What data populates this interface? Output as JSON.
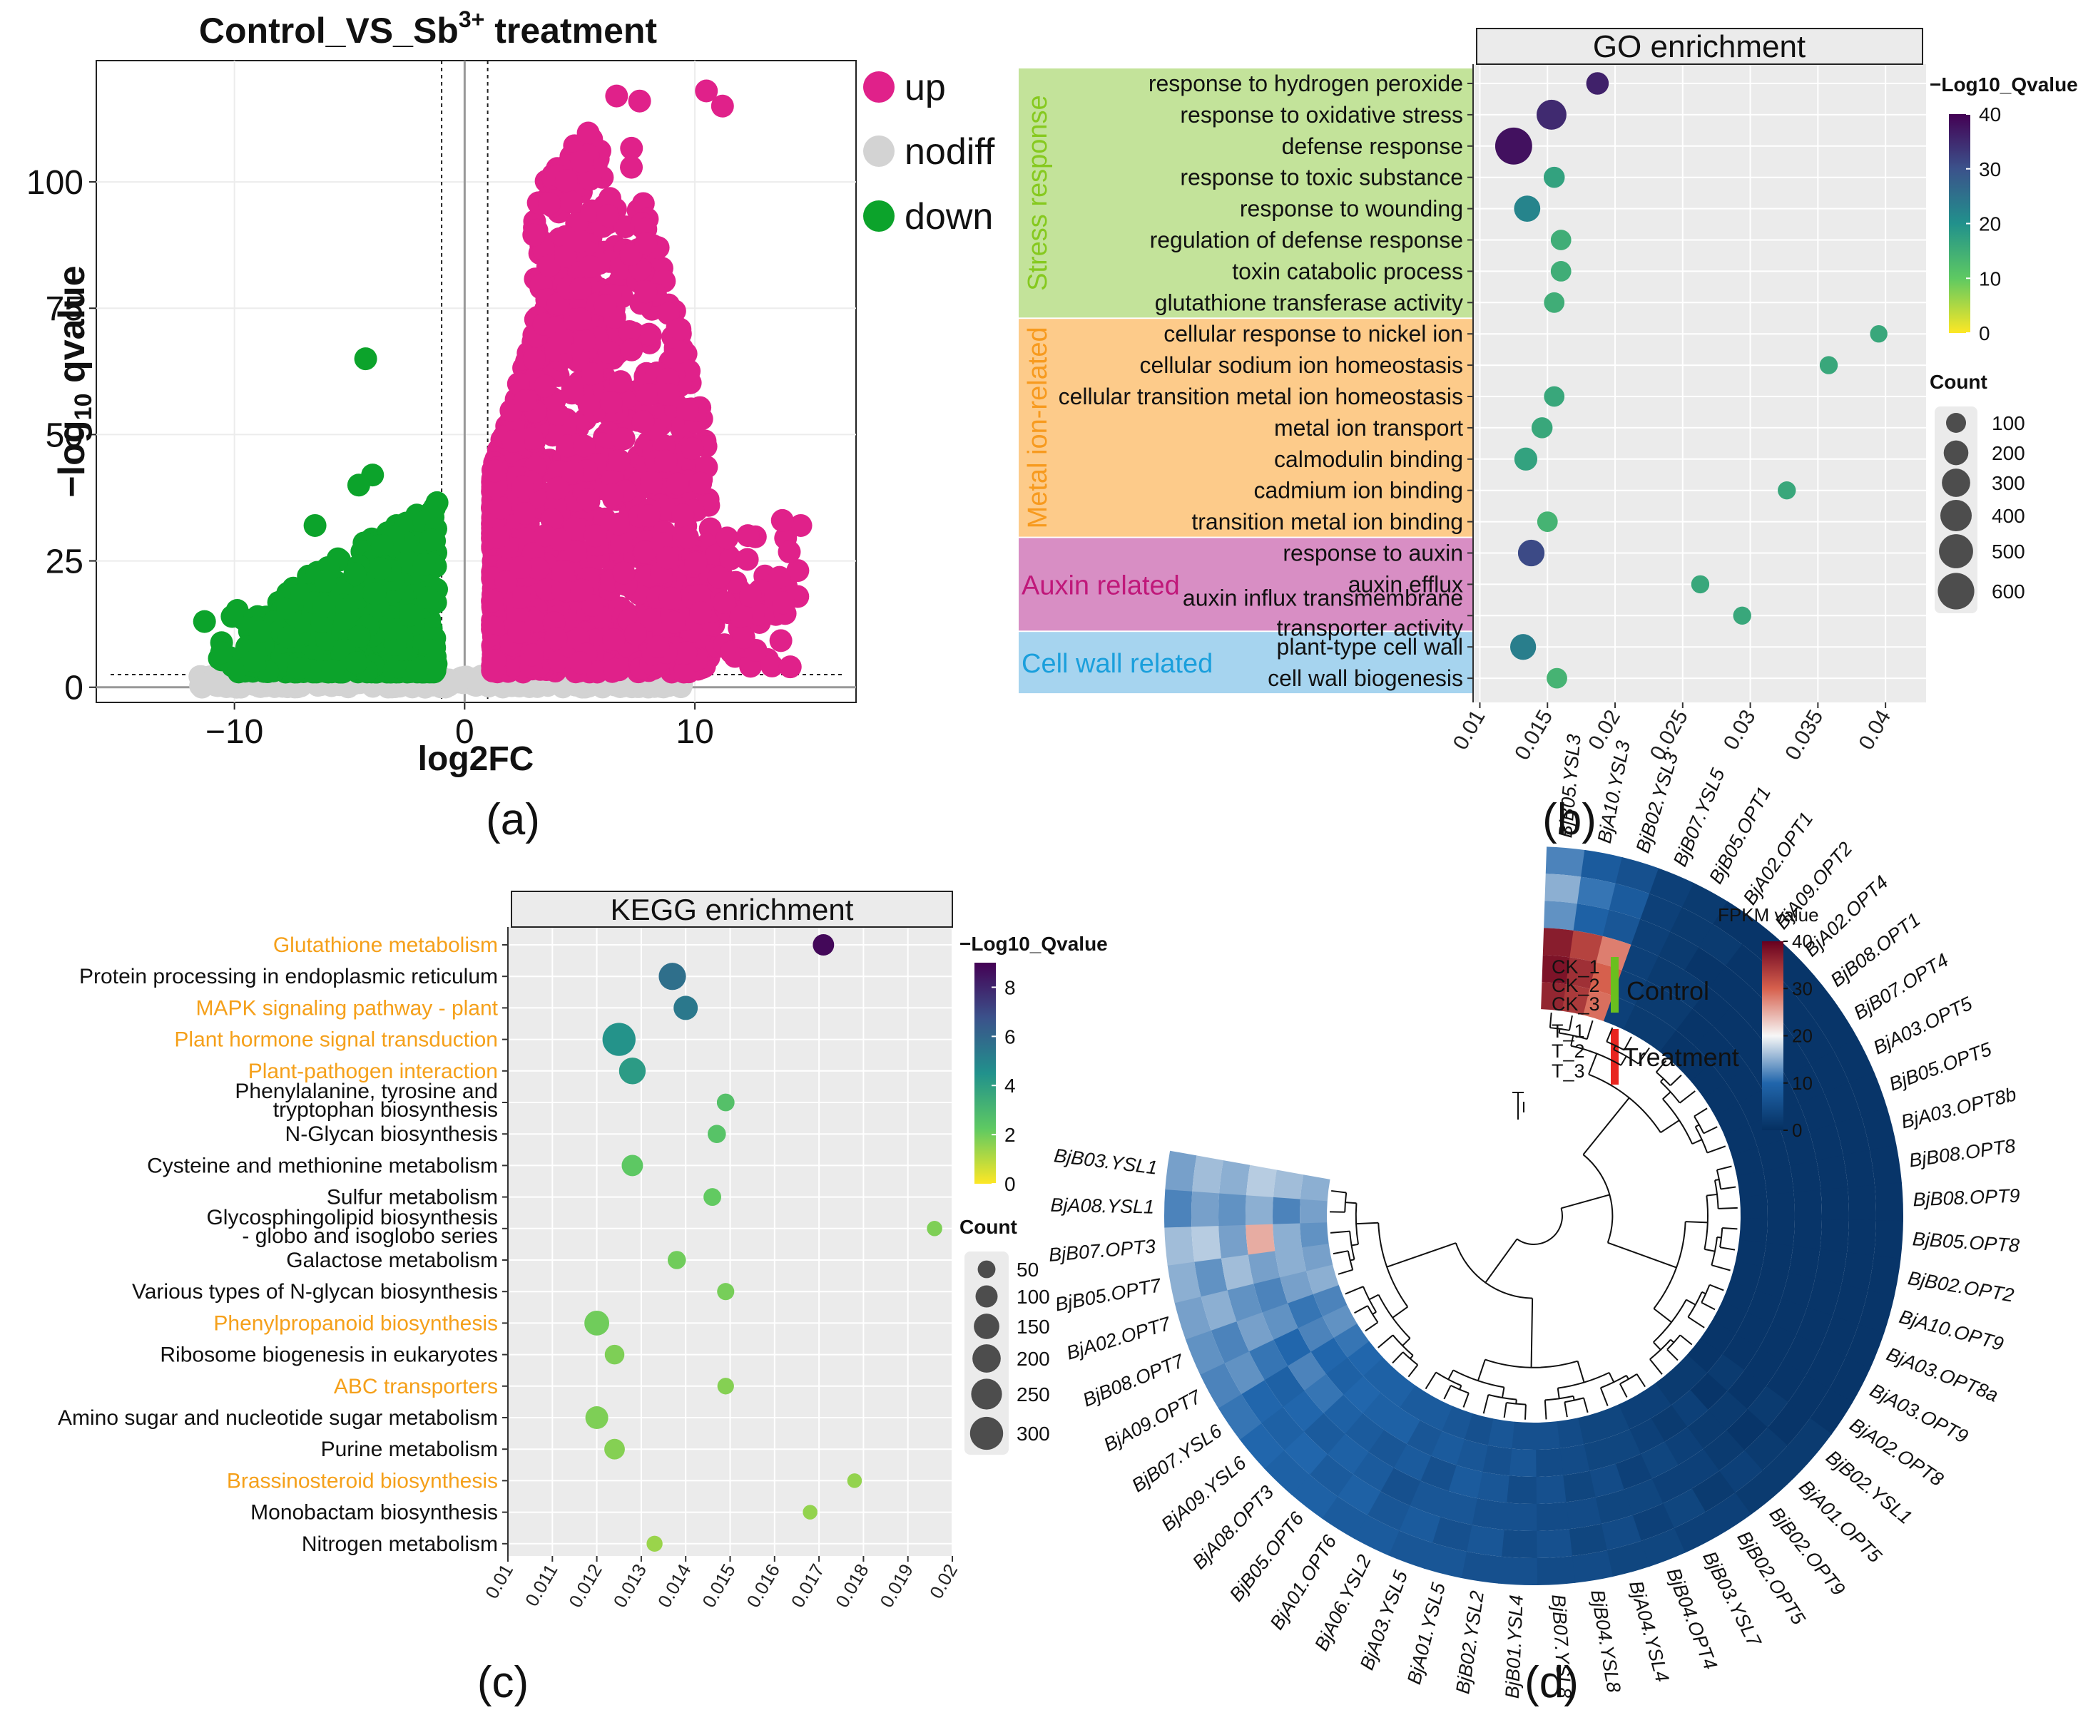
{
  "chart_data": [
    {
      "panel": "(a)",
      "type": "scatter",
      "title": "Control_VS_Sb",
      "title_superscript": "3+",
      "title_suffix": " treatment",
      "xlabel": "log2FC",
      "ylabel": "−log10 qvalue",
      "ylabel_parts": [
        "−log",
        "10",
        " qvalue"
      ],
      "xlim": [
        -16,
        17
      ],
      "ylim": [
        -3,
        124
      ],
      "xticks": [
        -10,
        0,
        10
      ],
      "yticks": [
        0,
        25,
        50,
        75,
        100
      ],
      "xtick_labels": [
        "−10",
        "0",
        "10"
      ],
      "vlines": [
        -1,
        1
      ],
      "hline": 2.5,
      "legend": [
        "up",
        "nodiff",
        "down"
      ],
      "colors": {
        "up": "#e0218a",
        "nodiff": "#d3d3d3",
        "down": "#0ca32b"
      },
      "highlight_points": [
        {
          "group": "down",
          "x": -4.3,
          "y": 65
        },
        {
          "group": "down",
          "x": -4.0,
          "y": 42
        },
        {
          "group": "down",
          "x": -4.6,
          "y": 40
        },
        {
          "group": "down",
          "x": -6.5,
          "y": 32
        },
        {
          "group": "down",
          "x": -10.1,
          "y": 14
        },
        {
          "group": "down",
          "x": -11.3,
          "y": 13
        },
        {
          "group": "down",
          "x": -8.9,
          "y": 11
        },
        {
          "group": "up",
          "x": 10.5,
          "y": 118
        },
        {
          "group": "up",
          "x": 11.2,
          "y": 115
        },
        {
          "group": "up",
          "x": 7.6,
          "y": 116
        },
        {
          "group": "up",
          "x": 6.6,
          "y": 117
        },
        {
          "group": "up",
          "x": 12.3,
          "y": 30
        },
        {
          "group": "up",
          "x": 14.6,
          "y": 32
        },
        {
          "group": "up",
          "x": 13.8,
          "y": 33
        },
        {
          "group": "up",
          "x": 12.0,
          "y": 14
        },
        {
          "group": "up",
          "x": 8.4,
          "y": 8
        }
      ]
    },
    {
      "panel": "(b)",
      "type": "scatter",
      "title": "GO enrichment",
      "xlim": [
        0.0095,
        0.043
      ],
      "xticks": [
        0.01,
        0.015,
        0.02,
        0.025,
        0.03,
        0.035,
        0.04
      ],
      "xtick_labels": [
        "0.01",
        "0.015",
        "0.02",
        "0.025",
        "0.03",
        "0.035",
        "0.04"
      ],
      "colorbar": {
        "label": "−Log10_Qvalue",
        "min": 0,
        "max": 40,
        "ticks": [
          0,
          10,
          20,
          30,
          40
        ],
        "tick_labels": [
          "0",
          "10",
          "20",
          "30",
          "40"
        ]
      },
      "size_legend": {
        "label": "Count",
        "values": [
          100,
          200,
          300,
          400,
          500,
          600
        ],
        "value_labels": [
          "100",
          "200",
          "300",
          "400",
          "500",
          "600"
        ]
      },
      "groups": [
        {
          "name": "Stress response",
          "color": "#c3e39a",
          "text_color": "#86c91f",
          "vertical": true,
          "first": 0,
          "last": 7
        },
        {
          "name": "Metal ion-related",
          "color": "#fdcb8a",
          "text_color": "#f79a1e",
          "vertical": true,
          "first": 8,
          "last": 14
        },
        {
          "name": "Auxin related",
          "color": "#d88ec4",
          "text_color": "#c0187a",
          "vertical": false,
          "first": 15,
          "last": 17
        },
        {
          "name": "Cell wall related",
          "color": "#a6d4ef",
          "text_color": "#1a9fdc",
          "vertical": false,
          "first": 18,
          "last": 19
        }
      ],
      "terms": [
        {
          "label": "response to hydrogen peroxide",
          "x": 0.0187,
          "q": 36,
          "count": 150
        },
        {
          "label": "response to oxidative stress",
          "x": 0.0153,
          "q": 35,
          "count": 350
        },
        {
          "label": "defense response",
          "x": 0.0125,
          "q": 38,
          "count": 620
        },
        {
          "label": "response to toxic substance",
          "x": 0.0155,
          "q": 17,
          "count": 120
        },
        {
          "label": "response to wounding",
          "x": 0.0135,
          "q": 22,
          "count": 240
        },
        {
          "label": "regulation of defense response",
          "x": 0.016,
          "q": 15,
          "count": 110
        },
        {
          "label": "toxin catabolic process",
          "x": 0.016,
          "q": 15,
          "count": 110
        },
        {
          "label": "glutathione transferase activity",
          "x": 0.0155,
          "q": 15,
          "count": 110
        },
        {
          "label": "cellular response to nickel ion",
          "x": 0.0395,
          "q": 16,
          "count": 60
        },
        {
          "label": "cellular sodium ion homeostasis",
          "x": 0.0358,
          "q": 16,
          "count": 70
        },
        {
          "label": "cellular transition metal ion homeostasis",
          "x": 0.0155,
          "q": 16,
          "count": 110
        },
        {
          "label": "metal ion transport",
          "x": 0.0146,
          "q": 16,
          "count": 120
        },
        {
          "label": "calmodulin binding",
          "x": 0.0134,
          "q": 17,
          "count": 160
        },
        {
          "label": "cadmium ion binding",
          "x": 0.0327,
          "q": 16,
          "count": 70
        },
        {
          "label": "transition metal ion binding",
          "x": 0.015,
          "q": 14,
          "count": 110
        },
        {
          "label": "response to auxin",
          "x": 0.0138,
          "q": 31,
          "count": 250
        },
        {
          "label": "auxin efflux",
          "x": 0.0263,
          "q": 16,
          "count": 70
        },
        {
          "label": "auxin influx transmembrane transporter activity",
          "label_lines": [
            "auxin influx transmembrane",
            "transporter activity"
          ],
          "x": 0.0294,
          "q": 16,
          "count": 70
        },
        {
          "label": "plant-type cell wall",
          "x": 0.0132,
          "q": 23,
          "count": 230
        },
        {
          "label": "cell wall biogenesis",
          "x": 0.0157,
          "q": 14,
          "count": 110
        }
      ]
    },
    {
      "panel": "(c)",
      "type": "scatter",
      "title": "KEGG enrichment",
      "xlim": [
        0.01,
        0.02
      ],
      "xticks": [
        0.01,
        0.011,
        0.012,
        0.013,
        0.014,
        0.015,
        0.016,
        0.017,
        0.018,
        0.019,
        0.02
      ],
      "xtick_labels": [
        "0.01",
        "0.011",
        "0.012",
        "0.013",
        "0.014",
        "0.015",
        "0.016",
        "0.017",
        "0.018",
        "0.019",
        "0.02"
      ],
      "colorbar": {
        "label": "−Log10_Qvalue",
        "min": 0,
        "max": 9,
        "ticks": [
          0,
          2,
          4,
          6,
          8
        ],
        "tick_labels": [
          "0",
          "2",
          "4",
          "6",
          "8"
        ]
      },
      "size_legend": {
        "label": "Count",
        "values": [
          50,
          100,
          150,
          200,
          250,
          300
        ],
        "value_labels": [
          "50",
          "100",
          "150",
          "200",
          "250",
          "300"
        ]
      },
      "pathways": [
        {
          "label": "Glutathione metabolism",
          "highlight": true,
          "x": 0.0171,
          "q": 8.8,
          "count": 90
        },
        {
          "label": "Protein processing in endoplasmic reticulum",
          "highlight": false,
          "x": 0.0137,
          "q": 5.7,
          "count": 180
        },
        {
          "label": "MAPK signaling pathway - plant",
          "highlight": true,
          "x": 0.014,
          "q": 5.4,
          "count": 130
        },
        {
          "label": "Plant hormone signal transduction",
          "highlight": true,
          "x": 0.0125,
          "q": 4.4,
          "count": 300
        },
        {
          "label": "Plant-pathogen interaction",
          "highlight": true,
          "x": 0.0128,
          "q": 4.1,
          "count": 170
        },
        {
          "label": "Phenylalanine, tyrosine and tryptophan biosynthesis",
          "label_lines": [
            "Phenylalanine, tyrosine and",
            "tryptophan biosynthesis"
          ],
          "highlight": false,
          "x": 0.0149,
          "q": 2.6,
          "count": 50
        },
        {
          "label": "N-Glycan biosynthesis",
          "highlight": false,
          "x": 0.0147,
          "q": 2.5,
          "count": 55
        },
        {
          "label": "Cysteine and methionine metabolism",
          "highlight": false,
          "x": 0.0128,
          "q": 2.3,
          "count": 90
        },
        {
          "label": "Sulfur metabolism",
          "highlight": false,
          "x": 0.0146,
          "q": 2.2,
          "count": 50
        },
        {
          "label": "Glycosphingolipid biosynthesis - globo and isoglobo series",
          "label_lines": [
            "Glycosphingolipid biosynthesis",
            "- globo and isoglobo series"
          ],
          "highlight": false,
          "x": 0.0196,
          "q": 1.8,
          "count": 30
        },
        {
          "label": "Galactose metabolism",
          "highlight": false,
          "x": 0.0138,
          "q": 2.0,
          "count": 55
        },
        {
          "label": "Various types of N-glycan biosynthesis",
          "highlight": false,
          "x": 0.0149,
          "q": 1.9,
          "count": 45
        },
        {
          "label": "Phenylpropanoid biosynthesis",
          "highlight": true,
          "x": 0.012,
          "q": 2.0,
          "count": 140
        },
        {
          "label": "Ribosome biogenesis in eukaryotes",
          "highlight": false,
          "x": 0.0124,
          "q": 1.8,
          "count": 70
        },
        {
          "label": "ABC transporters",
          "highlight": true,
          "x": 0.0149,
          "q": 1.7,
          "count": 40
        },
        {
          "label": "Amino sugar and nucleotide sugar metabolism",
          "highlight": false,
          "x": 0.012,
          "q": 1.8,
          "count": 110
        },
        {
          "label": "Purine metabolism",
          "highlight": false,
          "x": 0.0124,
          "q": 1.7,
          "count": 80
        },
        {
          "label": "Brassinosteroid biosynthesis",
          "highlight": true,
          "x": 0.0178,
          "q": 1.5,
          "count": 25
        },
        {
          "label": "Monobactam biosynthesis",
          "highlight": false,
          "x": 0.0168,
          "q": 1.5,
          "count": 25
        },
        {
          "label": "Nitrogen metabolism",
          "highlight": false,
          "x": 0.0133,
          "q": 1.4,
          "count": 35
        }
      ]
    },
    {
      "panel": "(d)",
      "type": "heatmap",
      "title": "FPKM value",
      "colorbar": {
        "min": 0,
        "max": 40,
        "ticks": [
          0,
          10,
          20,
          30,
          40
        ],
        "tick_labels": [
          "0",
          "10",
          "20",
          "30",
          "40"
        ]
      },
      "samples": [
        "CK_1",
        "CK_2",
        "CK_3",
        "T_1",
        "T_2",
        "T_3"
      ],
      "sample_groups": [
        {
          "name": "Control",
          "color": "#6abf1e"
        },
        {
          "name": "Treatment",
          "color": "#e8251f"
        }
      ],
      "genes": [
        "BjB05.YSL3",
        "BjA10.YSL3",
        "BjB02.YSL3",
        "BjB07.YSL5",
        "BjB05.OPT1",
        "BjA02.OPT1",
        "BjA09.OPT2",
        "BjA02.OPT4",
        "BjB08.OPT1",
        "BjB07.OPT4",
        "BjA03.OPT5",
        "BjB05.OPT5",
        "BjA03.OPT8b",
        "BjB08.OPT8",
        "BjB08.OPT9",
        "BjB05.OPT8",
        "BjB02.OPT2",
        "BjA10.OPT9",
        "BjA03.OPT8a",
        "BjA03.OPT9",
        "BjA02.OPT8",
        "BjB02.YSL1",
        "BjA01.OPT5",
        "BjB02.OPT9",
        "BjB02.OPT5",
        "BjB03.YSL7",
        "BjB04.OPT4",
        "BjA04.YSL4",
        "BjB04.YSL8",
        "BjB07.YSL8",
        "BjB01.YSL4",
        "BjB02.YSL2",
        "BjA01.YSL5",
        "BjA03.YSL5",
        "BjA06.YSL2",
        "BjA01.OPT6",
        "BjB05.OPT6",
        "BjA08.OPT3",
        "BjA09.YSL6",
        "BjB07.YSL6",
        "BjA09.OPT7",
        "BjB08.OPT7",
        "BjA02.OPT7",
        "BjB05.OPT7",
        "BjB07.OPT3",
        "BjA08.YSL1",
        "BjB03.YSL1"
      ],
      "fpkm": [
        [
          12,
          15,
          13,
          37,
          38,
          36
        ],
        [
          8,
          11,
          9,
          33,
          35,
          34
        ],
        [
          6,
          8,
          7,
          28,
          30,
          29
        ],
        [
          3,
          3,
          3,
          3,
          3,
          3
        ],
        [
          2,
          2,
          2,
          2,
          2,
          2
        ],
        [
          1,
          2,
          1,
          2,
          2,
          2
        ],
        [
          1,
          1,
          1,
          1,
          1,
          1
        ],
        [
          1,
          1,
          1,
          1,
          1,
          1
        ],
        [
          1,
          1,
          1,
          1,
          1,
          1
        ],
        [
          1,
          1,
          1,
          1,
          1,
          1
        ],
        [
          1,
          1,
          1,
          1,
          1,
          1
        ],
        [
          1,
          1,
          1,
          1,
          1,
          1
        ],
        [
          1,
          1,
          1,
          1,
          1,
          1
        ],
        [
          1,
          1,
          1,
          1,
          1,
          1
        ],
        [
          1,
          1,
          1,
          1,
          1,
          1
        ],
        [
          1,
          1,
          1,
          1,
          1,
          1
        ],
        [
          1,
          1,
          1,
          1,
          1,
          1
        ],
        [
          1,
          1,
          1,
          1,
          1,
          1
        ],
        [
          1,
          1,
          1,
          1,
          1,
          1
        ],
        [
          1,
          1,
          1,
          1,
          1,
          1
        ],
        [
          1,
          1,
          1,
          1,
          1,
          1
        ],
        [
          2,
          1,
          2,
          1,
          2,
          1
        ],
        [
          2,
          2,
          1,
          2,
          1,
          2
        ],
        [
          2,
          3,
          2,
          2,
          3,
          2
        ],
        [
          3,
          2,
          3,
          3,
          2,
          3
        ],
        [
          3,
          4,
          3,
          4,
          3,
          3
        ],
        [
          4,
          3,
          4,
          3,
          4,
          4
        ],
        [
          4,
          5,
          4,
          5,
          4,
          4
        ],
        [
          5,
          4,
          5,
          4,
          5,
          5
        ],
        [
          5,
          6,
          5,
          6,
          5,
          6
        ],
        [
          6,
          5,
          6,
          5,
          7,
          6
        ],
        [
          6,
          7,
          6,
          7,
          6,
          7
        ],
        [
          7,
          6,
          7,
          8,
          7,
          6
        ],
        [
          7,
          8,
          7,
          6,
          8,
          7
        ],
        [
          8,
          7,
          6,
          8,
          7,
          8
        ],
        [
          8,
          9,
          8,
          7,
          9,
          8
        ],
        [
          9,
          8,
          9,
          8,
          9,
          9
        ],
        [
          9,
          10,
          8,
          9,
          10,
          9
        ],
        [
          10,
          9,
          10,
          11,
          9,
          10
        ],
        [
          11,
          10,
          9,
          12,
          10,
          11
        ],
        [
          12,
          13,
          11,
          10,
          12,
          13
        ],
        [
          13,
          12,
          14,
          13,
          11,
          12
        ],
        [
          14,
          15,
          13,
          12,
          14,
          15
        ],
        [
          15,
          13,
          16,
          14,
          15,
          14
        ],
        [
          16,
          17,
          14,
          25,
          15,
          13
        ],
        [
          12,
          14,
          13,
          15,
          12,
          14
        ],
        [
          14,
          16,
          15,
          17,
          16,
          15
        ]
      ]
    }
  ],
  "panel_labels": [
    "(a)",
    "(b)",
    "(c)",
    "(d)"
  ]
}
